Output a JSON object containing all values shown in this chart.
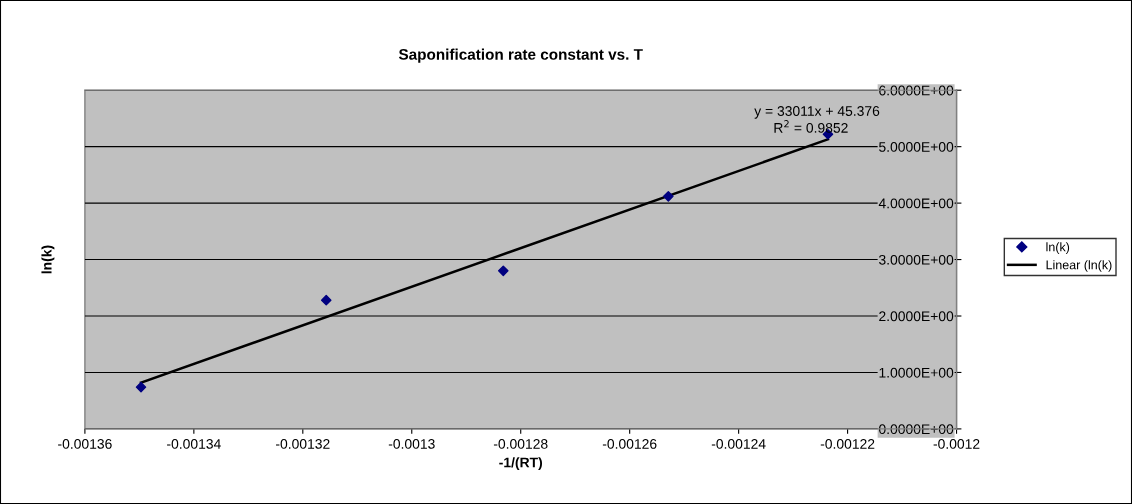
{
  "chart_data": {
    "type": "scatter",
    "title": "Saponification rate constant vs. T",
    "xlabel": "-1/(RT)",
    "ylabel": "ln(k)",
    "series": [
      {
        "name": "ln(k)",
        "color": "#000080",
        "marker": "diamond",
        "x": [
          -0.0013497,
          -0.0013157,
          -0.0012832,
          -0.0012529,
          -0.0012236
        ],
        "values": [
          0.74,
          2.28,
          2.8,
          4.12,
          5.22
        ]
      },
      {
        "name": "Linear (ln(k)",
        "type": "line",
        "color": "#000000",
        "marker": "none",
        "line_style": "solid",
        "x": [
          -0.0013497,
          -0.0012236
        ],
        "values": [
          0.82,
          5.13
        ]
      }
    ],
    "annotations": [
      "y = 33011x + 45.376",
      "R$^{2}$ = 0.9852"
    ],
    "xlim": [
      -0.00136,
      -0.0012
    ],
    "xticks": [
      -0.00136,
      -0.00134,
      -0.00132,
      -0.0013,
      -0.00128,
      -0.00126,
      -0.00124,
      -0.00122,
      -0.0012
    ],
    "ylim": [
      0,
      6
    ],
    "yticks": [
      {
        "value": 0,
        "label": "0.0000E+00"
      },
      {
        "value": 1,
        "label": "1.0000E+00"
      },
      {
        "value": 2,
        "label": "2.0000E+00"
      },
      {
        "value": 3,
        "label": "3.0000E+00"
      },
      {
        "value": 4,
        "label": "4.0000E+00"
      },
      {
        "value": 5,
        "label": "5.0000E+00"
      },
      {
        "value": 6,
        "label": "6.0000E+00"
      }
    ],
    "grid": "y",
    "legend": "right"
  }
}
